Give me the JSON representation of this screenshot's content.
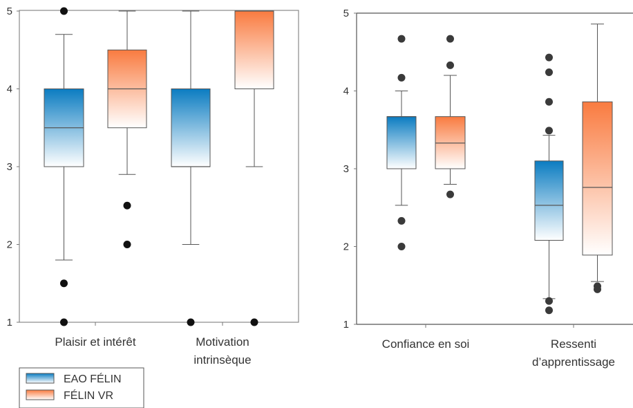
{
  "chart_data": [
    {
      "type": "box",
      "categories": [
        [
          "Plaisir et intérêt"
        ],
        [
          "Motivation",
          "intrinsèque"
        ]
      ],
      "ylim": [
        1,
        5
      ],
      "yticks": [
        "1",
        "2",
        "3",
        "4",
        "5"
      ],
      "grid": false,
      "series": [
        {
          "name": "EAO FÉLIN",
          "color_top": "#0b7cc1",
          "boxes": [
            {
              "min": 1.8,
              "q1": 3.0,
              "median": 3.5,
              "q3": 4.0,
              "max": 4.7,
              "outliers": [
                5.0,
                1.5,
                1.0
              ]
            },
            {
              "min": 2.0,
              "q1": 3.0,
              "median": 3.0,
              "q3": 4.0,
              "max": 5.0,
              "outliers": [
                1.0
              ]
            }
          ]
        },
        {
          "name": "FÉLIN VR",
          "color_top": "#f97b40",
          "boxes": [
            {
              "min": 2.9,
              "q1": 3.5,
              "median": 4.0,
              "q3": 4.5,
              "max": 5.0,
              "outliers": [
                2.5,
                2.0
              ]
            },
            {
              "min": 3.0,
              "q1": 4.0,
              "median": 5.0,
              "q3": 5.0,
              "max": 5.0,
              "outliers": [
                1.0
              ]
            }
          ]
        }
      ]
    },
    {
      "type": "box",
      "categories": [
        [
          "Confiance en soi"
        ],
        [
          "Ressenti",
          "d’apprentissage"
        ]
      ],
      "ylim": [
        1,
        5
      ],
      "yticks": [
        "1",
        "2",
        "3",
        "4",
        "5"
      ],
      "grid": false,
      "series": [
        {
          "name": "EAO FÉLIN",
          "color_top": "#0b7cc1",
          "boxes": [
            {
              "min": 2.53,
              "q1": 3.0,
              "median": 3.67,
              "q3": 3.67,
              "max": 4.0,
              "outliers": [
                4.67,
                4.17,
                2.33,
                2.0
              ]
            },
            {
              "min": 1.33,
              "q1": 2.08,
              "median": 2.53,
              "q3": 3.1,
              "max": 3.43,
              "outliers": [
                4.43,
                4.24,
                3.86,
                3.49,
                1.3,
                1.18
              ]
            }
          ]
        },
        {
          "name": "FÉLIN VR",
          "color_top": "#f97b40",
          "boxes": [
            {
              "min": 2.8,
              "q1": 3.0,
              "median": 3.33,
              "q3": 3.67,
              "max": 4.2,
              "outliers": [
                4.67,
                4.33,
                2.67
              ]
            },
            {
              "min": 1.55,
              "q1": 1.89,
              "median": 2.76,
              "q3": 3.86,
              "max": 4.86,
              "outliers": [
                1.49,
                1.45
              ]
            }
          ]
        }
      ]
    }
  ],
  "legend": {
    "items": [
      {
        "label": "EAO FÉLIN",
        "color_top": "#0b7cc1"
      },
      {
        "label": "FÉLIN VR",
        "color_top": "#f97b40"
      }
    ]
  }
}
